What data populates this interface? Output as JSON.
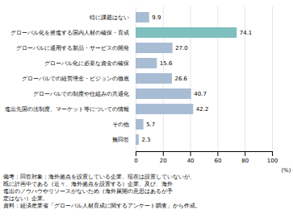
{
  "chart_data": {
    "type": "bar",
    "orientation": "horizontal",
    "categories": [
      "特に課題はない",
      "グローバル化を推進する国内人材の確保・育成",
      "グローバルに通用する製品・サービスの開発",
      "グローバル化に必要な資金の確保",
      "グローバルでの経営理念・ビジョンの徹底",
      "グローバルでの制度や仕組みの共通化",
      "進出先国の法制度、マーケット等についての情報",
      "その他",
      "無回答"
    ],
    "values": [
      9.9,
      74.1,
      27.0,
      15.6,
      26.6,
      40.7,
      42.2,
      5.7,
      2.3
    ],
    "value_labels": [
      "9.9",
      "74.1",
      "27.0",
      "15.6",
      "26.6",
      "40.7",
      "42.2",
      "5.7",
      "2.3"
    ],
    "colors": [
      "#a8bcd4",
      "#7fbfbf",
      "#a8bcd4",
      "#a8bcd4",
      "#a8bcd4",
      "#a8bcd4",
      "#a8bcd4",
      "#a8bcd4",
      "#a8bcd4"
    ],
    "xlabel": "(%)",
    "xlim": [
      0,
      100
    ],
    "xticks": [
      0,
      20,
      40,
      60,
      80,
      100
    ],
    "grid": true,
    "data_labels": true,
    "annotations": [
      "備考：回答対象：海外拠点を設置している企業、現在は設置していないが、",
      "既に計画中である（近々、海外拠点を設置する）企業、及び、海外",
      "進出のノウハウやリソースがないため（海外展開の意思はあるが予",
      "定はない）企業。",
      "資料：経済産業省「グローバル人材育成に関するアンケート調査」から作成。"
    ]
  }
}
